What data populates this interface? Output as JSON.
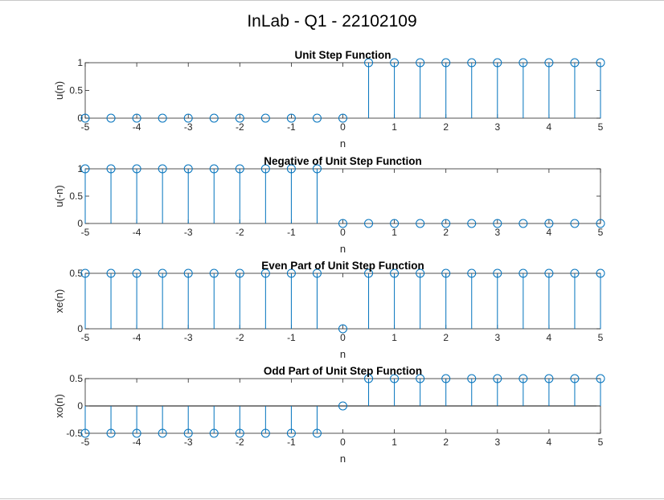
{
  "figure_title": "InLab - Q1 - 22102109",
  "colors": {
    "stem": "#0072BD",
    "axes": "#262626",
    "background": "#ffffff"
  },
  "chart_data": [
    {
      "type": "stem",
      "title": "Unit Step Function",
      "xlabel": "n",
      "ylabel": "u(n)",
      "xlim": [
        -5,
        5
      ],
      "ylim": [
        0,
        1
      ],
      "xticks": [
        "-5",
        "-4",
        "-3",
        "-2",
        "-1",
        "0",
        "1",
        "2",
        "3",
        "4",
        "5"
      ],
      "yticks": [
        "0",
        "0.5",
        "1"
      ],
      "x": [
        -5,
        -4.5,
        -4,
        -3.5,
        -3,
        -2.5,
        -2,
        -1.5,
        -1,
        -0.5,
        0,
        0.5,
        1,
        1.5,
        2,
        2.5,
        3,
        3.5,
        4,
        4.5,
        5
      ],
      "y": [
        0,
        0,
        0,
        0,
        0,
        0,
        0,
        0,
        0,
        0,
        0,
        1,
        1,
        1,
        1,
        1,
        1,
        1,
        1,
        1,
        1
      ]
    },
    {
      "type": "stem",
      "title": "Negative of Unit Step Function",
      "xlabel": "n",
      "ylabel": "u(-n)",
      "xlim": [
        -5,
        5
      ],
      "ylim": [
        0,
        1
      ],
      "xticks": [
        "-5",
        "-4",
        "-3",
        "-2",
        "-1",
        "0",
        "1",
        "2",
        "3",
        "4",
        "5"
      ],
      "yticks": [
        "0",
        "0.5",
        "1"
      ],
      "x": [
        -5,
        -4.5,
        -4,
        -3.5,
        -3,
        -2.5,
        -2,
        -1.5,
        -1,
        -0.5,
        0,
        0.5,
        1,
        1.5,
        2,
        2.5,
        3,
        3.5,
        4,
        4.5,
        5
      ],
      "y": [
        1,
        1,
        1,
        1,
        1,
        1,
        1,
        1,
        1,
        1,
        0,
        0,
        0,
        0,
        0,
        0,
        0,
        0,
        0,
        0,
        0
      ]
    },
    {
      "type": "stem",
      "title": "Even Part of Unit Step Function",
      "xlabel": "n",
      "ylabel": "xe(n)",
      "xlim": [
        -5,
        5
      ],
      "ylim": [
        0,
        0.5
      ],
      "xticks": [
        "-5",
        "-4",
        "-3",
        "-2",
        "-1",
        "0",
        "1",
        "2",
        "3",
        "4",
        "5"
      ],
      "yticks": [
        "0",
        "0.5"
      ],
      "x": [
        -5,
        -4.5,
        -4,
        -3.5,
        -3,
        -2.5,
        -2,
        -1.5,
        -1,
        -0.5,
        0,
        0.5,
        1,
        1.5,
        2,
        2.5,
        3,
        3.5,
        4,
        4.5,
        5
      ],
      "y": [
        0.5,
        0.5,
        0.5,
        0.5,
        0.5,
        0.5,
        0.5,
        0.5,
        0.5,
        0.5,
        0,
        0.5,
        0.5,
        0.5,
        0.5,
        0.5,
        0.5,
        0.5,
        0.5,
        0.5,
        0.5
      ]
    },
    {
      "type": "stem",
      "title": "Odd Part of Unit Step Function",
      "xlabel": "n",
      "ylabel": "xo(n)",
      "xlim": [
        -5,
        5
      ],
      "ylim": [
        -0.5,
        0.5
      ],
      "xticks": [
        "-5",
        "-4",
        "-3",
        "-2",
        "-1",
        "0",
        "1",
        "2",
        "3",
        "4",
        "5"
      ],
      "yticks": [
        "-0.5",
        "0",
        "0.5"
      ],
      "x": [
        -5,
        -4.5,
        -4,
        -3.5,
        -3,
        -2.5,
        -2,
        -1.5,
        -1,
        -0.5,
        0,
        0.5,
        1,
        1.5,
        2,
        2.5,
        3,
        3.5,
        4,
        4.5,
        5
      ],
      "y": [
        -0.5,
        -0.5,
        -0.5,
        -0.5,
        -0.5,
        -0.5,
        -0.5,
        -0.5,
        -0.5,
        -0.5,
        0,
        0.5,
        0.5,
        0.5,
        0.5,
        0.5,
        0.5,
        0.5,
        0.5,
        0.5,
        0.5
      ]
    }
  ]
}
